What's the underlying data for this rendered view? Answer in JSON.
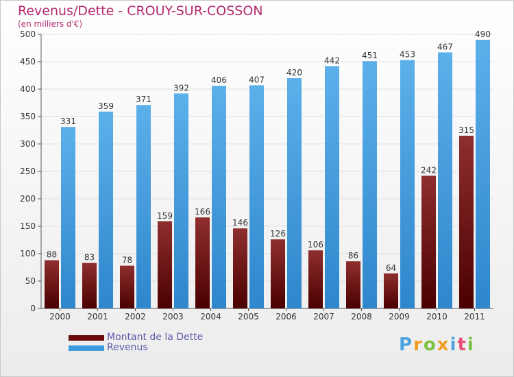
{
  "chart_data": {
    "type": "bar",
    "title": "Revenus/Dette - CROUY-SUR-COSSON",
    "subtitle": "(en milliers d'€)",
    "categories": [
      "2000",
      "2001",
      "2002",
      "2003",
      "2004",
      "2005",
      "2006",
      "2007",
      "2008",
      "2009",
      "2010",
      "2011"
    ],
    "series": [
      {
        "name": "Montant de la Dette",
        "color": "#7a0f0f",
        "values": [
          88,
          83,
          78,
          159,
          166,
          146,
          126,
          106,
          86,
          64,
          242,
          315
        ]
      },
      {
        "name": "Revenus",
        "color": "#3d9be0",
        "values": [
          331,
          359,
          371,
          392,
          406,
          407,
          420,
          442,
          451,
          453,
          467,
          490
        ]
      }
    ],
    "ylim": [
      0,
      500
    ],
    "yticks": [
      0,
      50,
      100,
      150,
      200,
      250,
      300,
      350,
      400,
      450,
      500
    ],
    "grid": true,
    "legend_position": "bottom-left"
  },
  "logo": {
    "letters": [
      "P",
      "r",
      "o",
      "x",
      "i",
      "t",
      "i"
    ],
    "colors": [
      "#4aa3df",
      "#f29c1f",
      "#7cc242",
      "#f29c1f",
      "#4aa3df",
      "#e94e77",
      "#7cc242"
    ]
  }
}
